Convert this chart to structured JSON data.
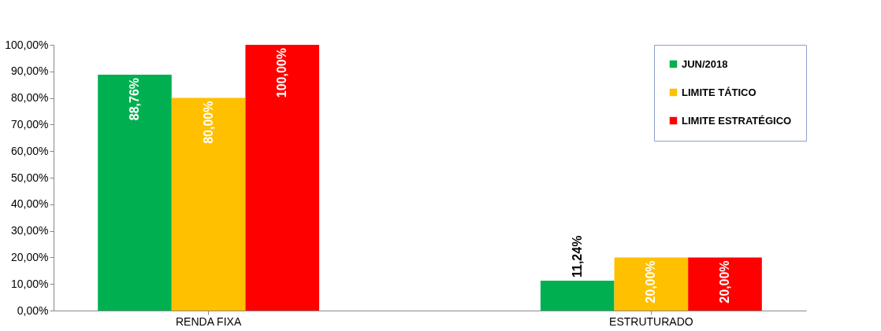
{
  "chart_data": {
    "type": "bar",
    "categories": [
      "RENDA FIXA",
      "ESTRUTURADO"
    ],
    "series": [
      {
        "name": "JUN/2018",
        "color": "#00b050",
        "values": [
          88.76,
          11.24
        ],
        "value_labels": [
          "88,76%",
          "11,24%"
        ]
      },
      {
        "name": "LIMITE TÁTICO",
        "color": "#ffc000",
        "values": [
          80,
          20
        ],
        "value_labels": [
          "80,00%",
          "20,00%"
        ]
      },
      {
        "name": "LIMITE ESTRATÉGICO",
        "color": "#ff0000",
        "values": [
          100,
          20
        ],
        "value_labels": [
          "100,00%",
          "20,00%"
        ]
      }
    ],
    "ylim": [
      0,
      100
    ],
    "yticks": [
      {
        "value": 0,
        "label": "0,00%"
      },
      {
        "value": 10,
        "label": "10,00%"
      },
      {
        "value": 20,
        "label": "20,00%"
      },
      {
        "value": 30,
        "label": "30,00%"
      },
      {
        "value": 40,
        "label": "40,00%"
      },
      {
        "value": 50,
        "label": "50,00%"
      },
      {
        "value": 60,
        "label": "60,00%"
      },
      {
        "value": 70,
        "label": "70,00%"
      },
      {
        "value": 80,
        "label": "80,00%"
      },
      {
        "value": 90,
        "label": "90,00%"
      },
      {
        "value": 100,
        "label": "100,00%"
      }
    ],
    "grid": false,
    "legend": "top right"
  }
}
